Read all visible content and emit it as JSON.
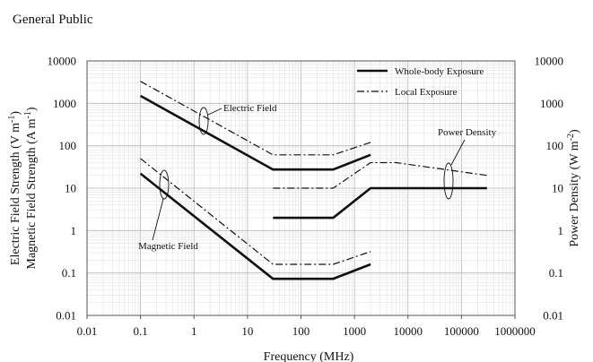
{
  "chart_data": {
    "type": "line",
    "title": "General Public",
    "xlabel": "Frequency (MHz)",
    "ylabel_left_1": "Electric Field  Strength (V m",
    "ylabel_left_1_sup": "-1",
    "ylabel_left_1_end": ")",
    "ylabel_left_2": "Magnetic Field Strength (A m",
    "ylabel_left_2_sup": "-1",
    "ylabel_left_2_end": ")",
    "ylabel_right": "Power Density (W m",
    "ylabel_right_sup": "-2",
    "ylabel_right_end": ")",
    "x_scale": "log",
    "y_scale": "log",
    "xlim": [
      0.01,
      1000000
    ],
    "ylim": [
      0.01,
      10000
    ],
    "x_ticks": [
      "0.01",
      "0.1",
      "1",
      "10",
      "100",
      "1000",
      "10000",
      "100000",
      "1000000"
    ],
    "y_ticks": [
      "0.01",
      "0.1",
      "1",
      "10",
      "100",
      "1000",
      "10000"
    ],
    "grid": true,
    "legend": {
      "placement": "top-right",
      "entries": [
        {
          "name": "Whole-body Exposure",
          "style": "solid"
        },
        {
          "name": "Local Exposure",
          "style": "dashdot"
        }
      ]
    },
    "annotations": [
      "Electric Field",
      "Magnetic Field",
      "Power Density"
    ],
    "series": [
      {
        "style": "solid",
        "group": "Electric Field",
        "x": [
          0.1,
          30,
          400,
          2000
        ],
        "y": [
          1500,
          27.5,
          27.5,
          61
        ]
      },
      {
        "style": "dashdot",
        "group": "Electric Field",
        "x": [
          0.1,
          30,
          400,
          2000
        ],
        "y": [
          3300,
          61,
          61,
          120
        ]
      },
      {
        "style": "solid",
        "group": "Magnetic Field",
        "x": [
          0.1,
          30,
          400,
          2000
        ],
        "y": [
          22,
          0.073,
          0.073,
          0.16
        ]
      },
      {
        "style": "dashdot",
        "group": "Magnetic Field",
        "x": [
          0.1,
          30,
          400,
          2000
        ],
        "y": [
          50,
          0.16,
          0.16,
          0.32
        ]
      },
      {
        "style": "solid",
        "group": "Power Density",
        "x": [
          30,
          400,
          2000,
          300000
        ],
        "y": [
          2,
          2,
          10,
          10
        ]
      },
      {
        "style": "dashdot",
        "group": "Power Density",
        "x": [
          30,
          400,
          2000,
          6000,
          300000
        ],
        "y": [
          10,
          10,
          40,
          40,
          20
        ]
      }
    ]
  }
}
